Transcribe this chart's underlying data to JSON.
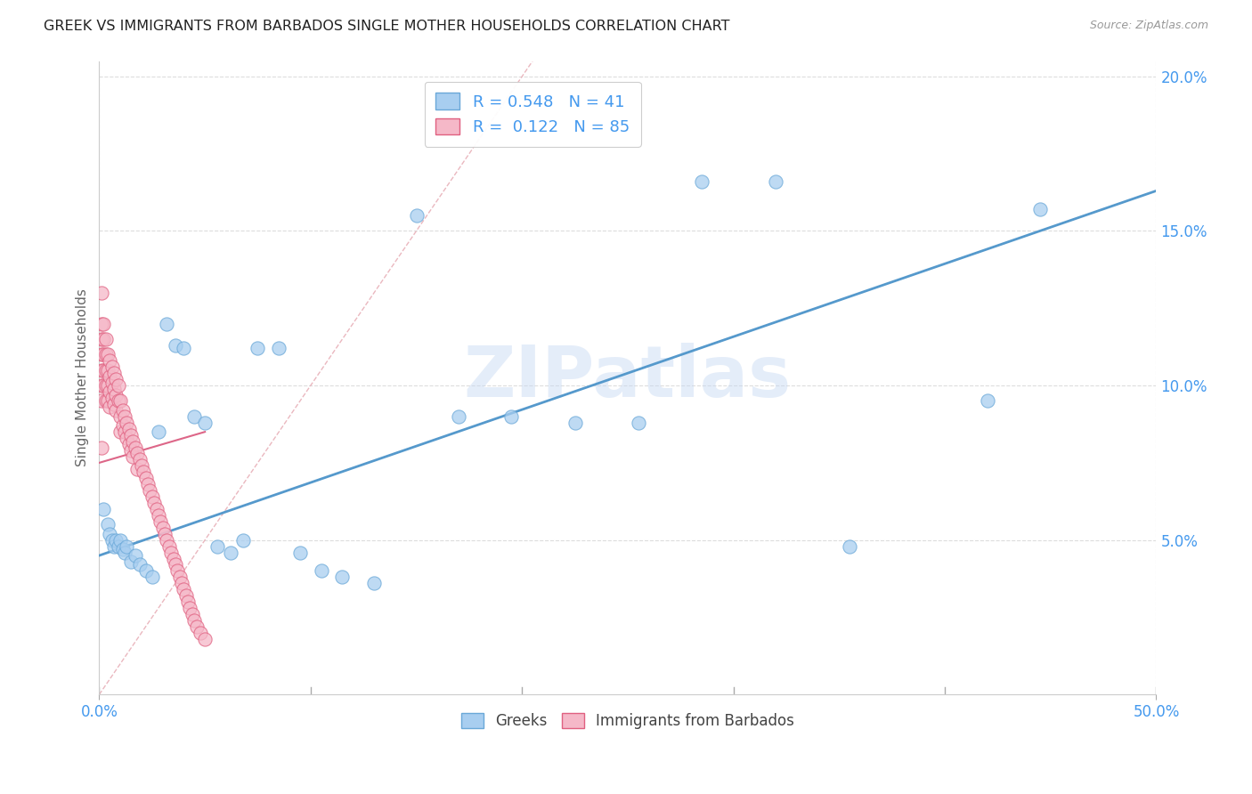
{
  "title": "GREEK VS IMMIGRANTS FROM BARBADOS SINGLE MOTHER HOUSEHOLDS CORRELATION CHART",
  "source": "Source: ZipAtlas.com",
  "ylabel": "Single Mother Households",
  "xlim": [
    0,
    0.5
  ],
  "ylim": [
    0,
    0.205
  ],
  "xticks": [
    0.0,
    0.5
  ],
  "yticks": [
    0.05,
    0.1,
    0.15,
    0.2
  ],
  "xticklabels": [
    "0.0%",
    "50.0%"
  ],
  "yticklabels": [
    "5.0%",
    "10.0%",
    "15.0%",
    "20.0%"
  ],
  "legend1_label": "Greeks",
  "legend2_label": "Immigrants from Barbados",
  "blue_R": "0.548",
  "blue_N": "41",
  "pink_R": "0.122",
  "pink_N": "85",
  "blue_color": "#A8CEF0",
  "pink_color": "#F5B8C8",
  "blue_edge_color": "#6AA8D8",
  "pink_edge_color": "#E06080",
  "blue_line_color": "#5599CC",
  "pink_line_color": "#DD6688",
  "diag_line_color": "#E8B0B8",
  "grid_color": "#DDDDDD",
  "axis_tick_color": "#4499EE",
  "watermark": "ZIPatlas",
  "blue_line_x0": 0.0,
  "blue_line_y0": 0.045,
  "blue_line_x1": 0.5,
  "blue_line_y1": 0.163,
  "pink_line_x0": 0.0,
  "pink_line_y0": 0.075,
  "pink_line_x1": 0.05,
  "pink_line_y1": 0.085,
  "blue_x": [
    0.002,
    0.004,
    0.005,
    0.006,
    0.007,
    0.008,
    0.009,
    0.01,
    0.011,
    0.012,
    0.013,
    0.015,
    0.017,
    0.019,
    0.022,
    0.025,
    0.028,
    0.032,
    0.036,
    0.04,
    0.045,
    0.05,
    0.056,
    0.062,
    0.068,
    0.075,
    0.085,
    0.095,
    0.105,
    0.115,
    0.13,
    0.15,
    0.17,
    0.195,
    0.225,
    0.255,
    0.285,
    0.32,
    0.355,
    0.42,
    0.445
  ],
  "blue_y": [
    0.06,
    0.055,
    0.052,
    0.05,
    0.048,
    0.05,
    0.048,
    0.05,
    0.047,
    0.046,
    0.048,
    0.043,
    0.045,
    0.042,
    0.04,
    0.038,
    0.085,
    0.12,
    0.113,
    0.112,
    0.09,
    0.088,
    0.048,
    0.046,
    0.05,
    0.112,
    0.112,
    0.046,
    0.04,
    0.038,
    0.036,
    0.155,
    0.09,
    0.09,
    0.088,
    0.088,
    0.166,
    0.166,
    0.048,
    0.095,
    0.157
  ],
  "pink_x": [
    0.001,
    0.001,
    0.001,
    0.001,
    0.001,
    0.001,
    0.001,
    0.001,
    0.002,
    0.002,
    0.002,
    0.002,
    0.002,
    0.003,
    0.003,
    0.003,
    0.003,
    0.003,
    0.004,
    0.004,
    0.004,
    0.004,
    0.005,
    0.005,
    0.005,
    0.005,
    0.006,
    0.006,
    0.006,
    0.007,
    0.007,
    0.007,
    0.008,
    0.008,
    0.008,
    0.009,
    0.009,
    0.01,
    0.01,
    0.01,
    0.011,
    0.011,
    0.012,
    0.012,
    0.013,
    0.013,
    0.014,
    0.014,
    0.015,
    0.015,
    0.016,
    0.016,
    0.017,
    0.018,
    0.018,
    0.019,
    0.02,
    0.021,
    0.022,
    0.023,
    0.024,
    0.025,
    0.026,
    0.027,
    0.028,
    0.029,
    0.03,
    0.031,
    0.032,
    0.033,
    0.034,
    0.035,
    0.036,
    0.037,
    0.038,
    0.039,
    0.04,
    0.041,
    0.042,
    0.043,
    0.044,
    0.045,
    0.046,
    0.048,
    0.05
  ],
  "pink_y": [
    0.13,
    0.12,
    0.115,
    0.11,
    0.105,
    0.1,
    0.095,
    0.08,
    0.12,
    0.115,
    0.11,
    0.105,
    0.1,
    0.115,
    0.11,
    0.105,
    0.1,
    0.095,
    0.11,
    0.105,
    0.1,
    0.095,
    0.108,
    0.103,
    0.098,
    0.093,
    0.106,
    0.101,
    0.096,
    0.104,
    0.099,
    0.094,
    0.102,
    0.097,
    0.092,
    0.1,
    0.095,
    0.095,
    0.09,
    0.085,
    0.092,
    0.087,
    0.09,
    0.085,
    0.088,
    0.083,
    0.086,
    0.081,
    0.084,
    0.079,
    0.082,
    0.077,
    0.08,
    0.078,
    0.073,
    0.076,
    0.074,
    0.072,
    0.07,
    0.068,
    0.066,
    0.064,
    0.062,
    0.06,
    0.058,
    0.056,
    0.054,
    0.052,
    0.05,
    0.048,
    0.046,
    0.044,
    0.042,
    0.04,
    0.038,
    0.036,
    0.034,
    0.032,
    0.03,
    0.028,
    0.026,
    0.024,
    0.022,
    0.02,
    0.018
  ]
}
